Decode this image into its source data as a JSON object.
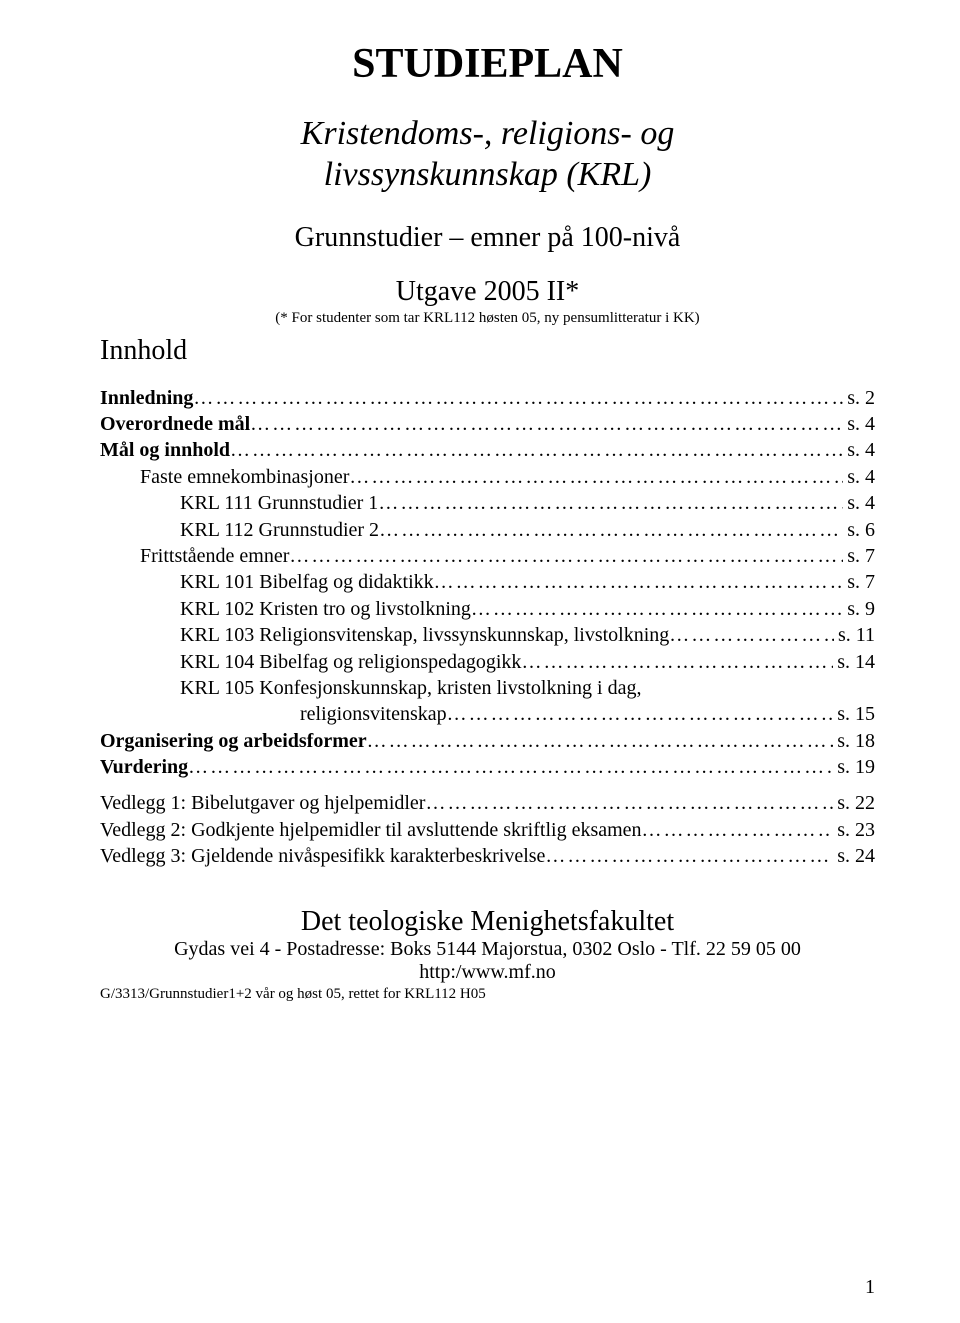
{
  "title": "STUDIEPLAN",
  "subtitle_line1": "Kristendoms-, religions- og",
  "subtitle_line2": "livssynskunnskap (KRL)",
  "subheading": "Grunnstudier – emner på 100-nivå",
  "edition": "Utgave 2005 II*",
  "edition_note": "(* For studenter som tar KRL112 høsten 05, ny pensumlitteratur i KK)",
  "contents_heading": "Innhold",
  "toc_main": [
    {
      "label": "Innledning",
      "page": "s. 2",
      "bold": true,
      "indent": 0
    },
    {
      "label": "Overordnede mål",
      "page": "s. 4",
      "bold": true,
      "indent": 0
    },
    {
      "label": "Mål og innhold",
      "page": "s. 4",
      "bold": true,
      "indent": 0
    },
    {
      "label": "Faste emnekombinasjoner",
      "page": "s. 4",
      "bold": false,
      "indent": 1
    },
    {
      "label": "KRL 111 Grunnstudier 1",
      "page": "s. 4",
      "bold": false,
      "indent": 2
    },
    {
      "label": "KRL 112 Grunnstudier 2",
      "page": "s. 6",
      "bold": false,
      "indent": 2
    },
    {
      "label": "Frittstående emner",
      "page": "s. 7",
      "bold": false,
      "indent": 1
    },
    {
      "label": "KRL 101 Bibelfag og didaktikk",
      "page": "s. 7",
      "bold": false,
      "indent": 2
    },
    {
      "label": "KRL 102 Kristen tro og livstolkning",
      "page": "s. 9",
      "bold": false,
      "indent": 2
    },
    {
      "label": "KRL 103 Religionsvitenskap, livssynskunnskap, livstolkning",
      "page": "s. 11",
      "bold": false,
      "indent": 2
    },
    {
      "label": "KRL 104 Bibelfag og religionspedagogikk",
      "page": "s. 14",
      "bold": false,
      "indent": 2
    },
    {
      "label": "KRL 105 Konfesjonskunnskap, kristen livstolkning i dag,",
      "page": "",
      "bold": false,
      "indent": 2,
      "noleader": true
    },
    {
      "label": "religionsvitenskap",
      "page": "s. 15",
      "bold": false,
      "indent": 2,
      "extraindent": true
    },
    {
      "label": "Organisering og arbeidsformer",
      "page": "s. 18",
      "bold": true,
      "indent": 0
    },
    {
      "label": "Vurdering",
      "page": "s. 19",
      "bold": true,
      "indent": 0
    }
  ],
  "toc_appendix": [
    {
      "label": "Vedlegg 1: Bibelutgaver og hjelpemidler",
      "page": "s. 22"
    },
    {
      "label": "Vedlegg 2: Godkjente hjelpemidler til avsluttende skriftlig eksamen",
      "page": "s. 23"
    },
    {
      "label": "Vedlegg 3:  Gjeldende nivåspesifikk karakterbeskrivelse",
      "page": "s. 24"
    }
  ],
  "footer": {
    "institution": "Det teologiske Menighetsfakultet",
    "address": "Gydas vei 4  -  Postadresse: Boks 5144 Majorstua, 0302 Oslo  -  Tlf. 22 59 05 00",
    "url": "http:/www.mf.no",
    "filecode": "G/3313/Grunnstudier1+2 vår og høst 05, rettet for KRL112 H05"
  },
  "page_number": "1"
}
